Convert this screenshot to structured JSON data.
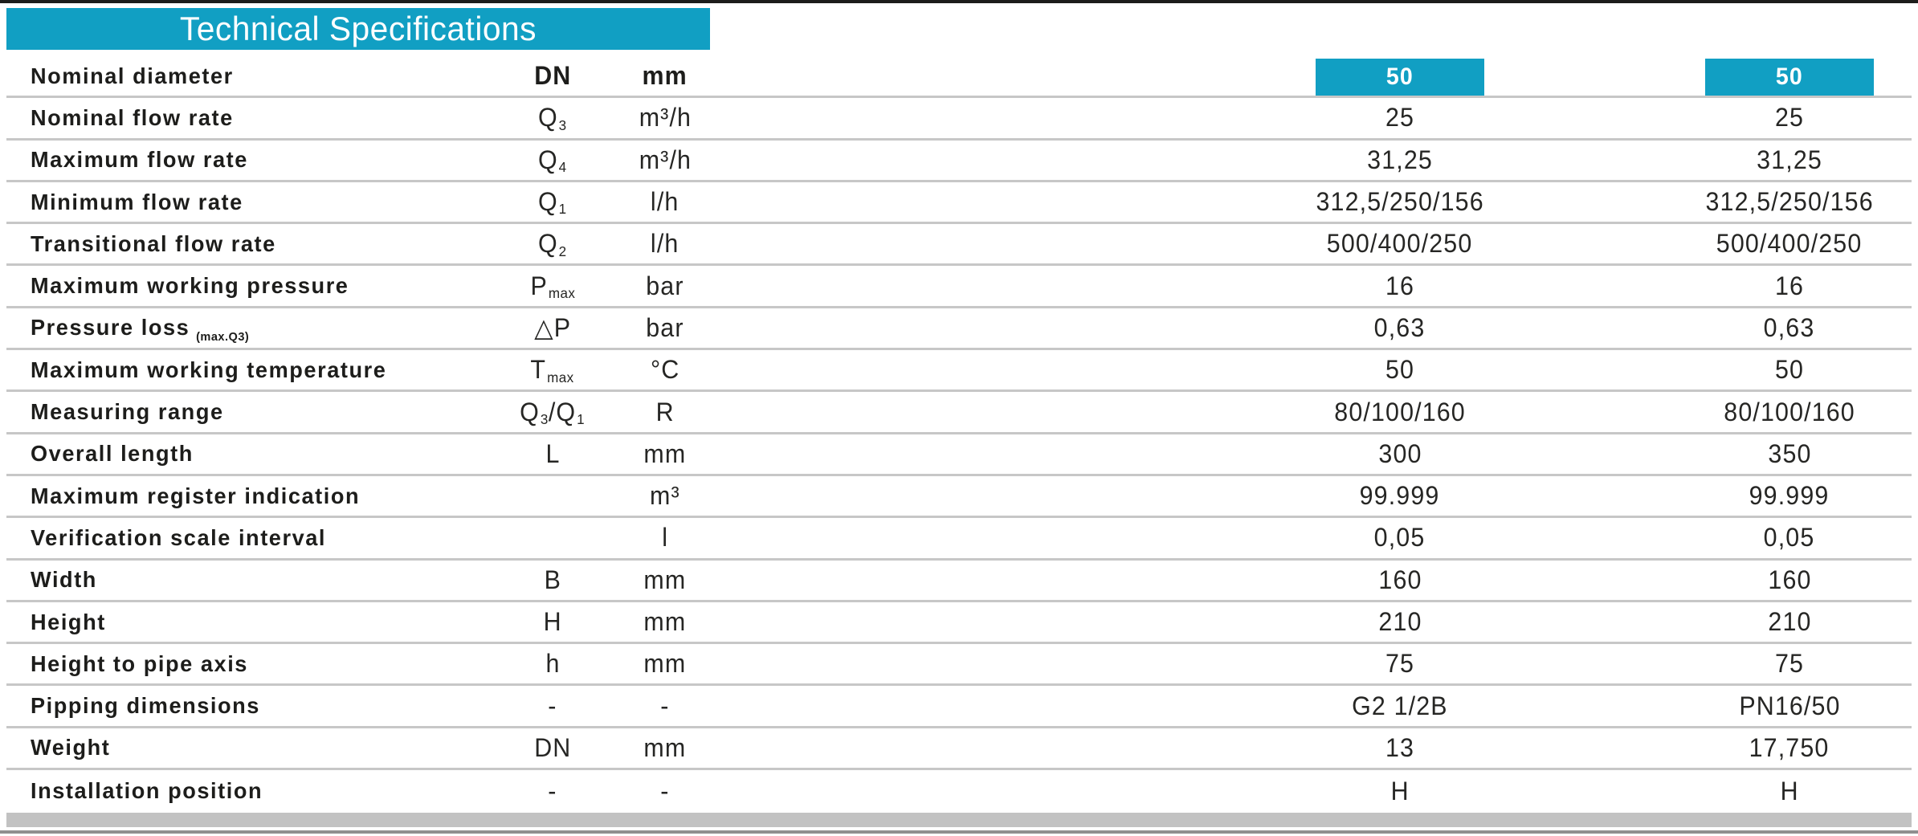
{
  "title": "Technical Specifications",
  "colors": {
    "accent": "#119fc3",
    "ink": "#1d1d1b",
    "separator": "#c7c7c7",
    "table_bottom_bar": "#c2c2c2",
    "page_bottom_rule": "#8f8f8f",
    "title_text": "#ffffff"
  },
  "header_row": {
    "label": "Nominal diameter",
    "symbol": "DN",
    "unit": "mm",
    "col1": "50",
    "col2": "50"
  },
  "rows": [
    {
      "label": "Nominal flow rate",
      "symbol": [
        {
          "t": "Q",
          "s": "3"
        }
      ],
      "unit": "m³/h",
      "values": [
        "25",
        "25"
      ]
    },
    {
      "label": "Maximum flow rate",
      "symbol": [
        {
          "t": "Q",
          "s": "4"
        }
      ],
      "unit": "m³/h",
      "values": [
        "31,25",
        "31,25"
      ]
    },
    {
      "label": "Minimum flow rate",
      "symbol": [
        {
          "t": "Q",
          "s": "1"
        }
      ],
      "unit": "l/h",
      "values": [
        "312,5/250/156",
        "312,5/250/156"
      ]
    },
    {
      "label": "Transitional flow rate",
      "symbol": [
        {
          "t": "Q",
          "s": "2"
        }
      ],
      "unit": "l/h",
      "values": [
        "500/400/250",
        "500/400/250"
      ]
    },
    {
      "label": "Maximum working pressure",
      "symbol": [
        {
          "t": "P",
          "s": "max"
        }
      ],
      "unit": "bar",
      "values": [
        "16",
        "16"
      ]
    },
    {
      "label": "Pressure loss",
      "note": "(max.Q3)",
      "symbol": [
        {
          "t": "△P"
        }
      ],
      "unit": "bar",
      "values": [
        "0,63",
        "0,63"
      ]
    },
    {
      "label": "Maximum working temperature",
      "symbol": [
        {
          "t": "T",
          "s": "max"
        }
      ],
      "unit": "°C",
      "values": [
        "50",
        "50"
      ]
    },
    {
      "label": "Measuring range",
      "symbol": [
        {
          "t": "Q",
          "s": "3"
        },
        {
          "t": "/Q",
          "s": "1"
        }
      ],
      "unit": "R",
      "values": [
        "80/100/160",
        "80/100/160"
      ]
    },
    {
      "label": "Overall length",
      "symbol": [
        {
          "t": "L"
        }
      ],
      "unit": "mm",
      "values": [
        "300",
        "350"
      ]
    },
    {
      "label": "Maximum register indication",
      "symbol": [],
      "unit": "m³",
      "values": [
        "99.999",
        "99.999"
      ]
    },
    {
      "label": "Verification scale interval",
      "symbol": [],
      "unit": "l",
      "values": [
        "0,05",
        "0,05"
      ]
    },
    {
      "label": "Width",
      "symbol": [
        {
          "t": "B"
        }
      ],
      "unit": "mm",
      "values": [
        "160",
        "160"
      ]
    },
    {
      "label": "Height",
      "symbol": [
        {
          "t": "H"
        }
      ],
      "unit": "mm",
      "values": [
        "210",
        "210"
      ]
    },
    {
      "label": "Height to pipe axis",
      "symbol": [
        {
          "t": "h"
        }
      ],
      "unit": "mm",
      "values": [
        "75",
        "75"
      ]
    },
    {
      "label": "Pipping dimensions",
      "symbol": [
        {
          "t": "-"
        }
      ],
      "unit": "-",
      "values": [
        "G2 1/2B",
        "PN16/50"
      ]
    },
    {
      "label": "Weight",
      "symbol": [
        {
          "t": "DN"
        }
      ],
      "unit": "mm",
      "values": [
        "13",
        "17,750"
      ]
    },
    {
      "label": "Installation position",
      "symbol": [
        {
          "t": "-"
        }
      ],
      "unit": "-",
      "values": [
        "H",
        "H"
      ]
    }
  ]
}
